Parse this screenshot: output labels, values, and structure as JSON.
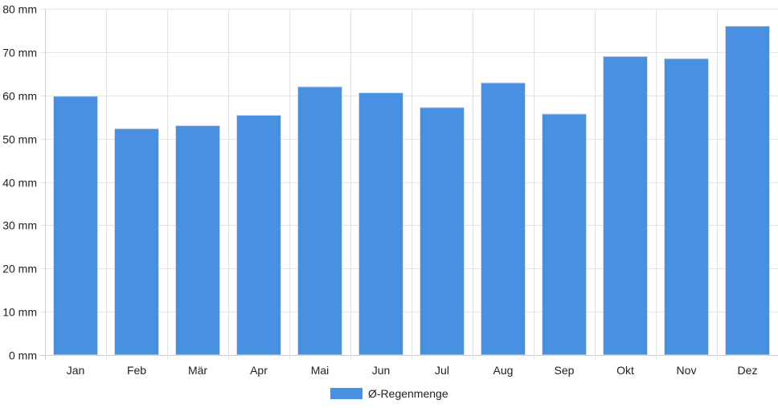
{
  "colors": {
    "bar": "#4a90e2",
    "grid": "#e4e4e4"
  },
  "chart_data": {
    "type": "bar",
    "categories": [
      "Jan",
      "Feb",
      "Mär",
      "Apr",
      "Mai",
      "Jun",
      "Jul",
      "Aug",
      "Sep",
      "Okt",
      "Nov",
      "Dez"
    ],
    "series": [
      {
        "name": "Ø-Regenmenge",
        "values": [
          59.8,
          52.3,
          53.0,
          55.4,
          62.0,
          60.6,
          57.2,
          62.9,
          55.7,
          69.0,
          68.5,
          76.0
        ]
      }
    ],
    "y_ticks": [
      "0 mm",
      "10 mm",
      "20 mm",
      "30 mm",
      "40 mm",
      "50 mm",
      "60 mm",
      "70 mm",
      "80 mm"
    ],
    "ylim": [
      0,
      80
    ],
    "ystep": 10,
    "grid": true,
    "legend_position": "bottom"
  }
}
